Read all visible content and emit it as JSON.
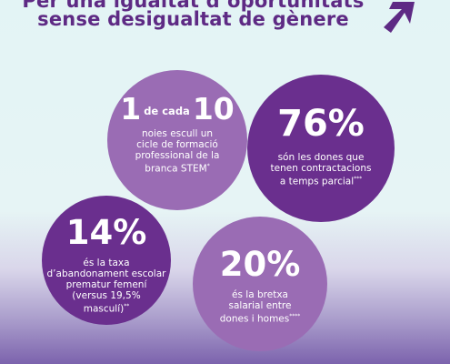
{
  "header": {
    "title_line1": "Per una igualtat d’oportunitats",
    "title_line2": "sense desigualtat de gènere"
  },
  "logo": {
    "icon": "arrow-up-right-icon",
    "color": "#5e2a84"
  },
  "stats": [
    {
      "number_a": "1",
      "connector": "de cada",
      "number_b": "10",
      "description": "noies escull un\ncicle de formació\nprofessional de la\nbranca STEM",
      "footnote": "*",
      "color": "#9a6cb4"
    },
    {
      "value": "76%",
      "description": "són les dones que\ntenen contractacions\na temps parcial",
      "footnote": "***",
      "color": "#6a2f8e"
    },
    {
      "value": "14%",
      "description": "és la taxa\nd’abandonament escolar\nprematur femení\n(versus 19,5%\nmasculí)",
      "footnote": "**",
      "color": "#6a2f8e"
    },
    {
      "value": "20%",
      "description": "és la bretxa\nsalarial entre\ndones i homes",
      "footnote": "****",
      "color": "#9a6cb4"
    }
  ],
  "colors": {
    "title": "#5e2a84",
    "light_purple": "#9a6cb4",
    "dark_purple": "#6a2f8e",
    "background": "#e3f4f5"
  }
}
